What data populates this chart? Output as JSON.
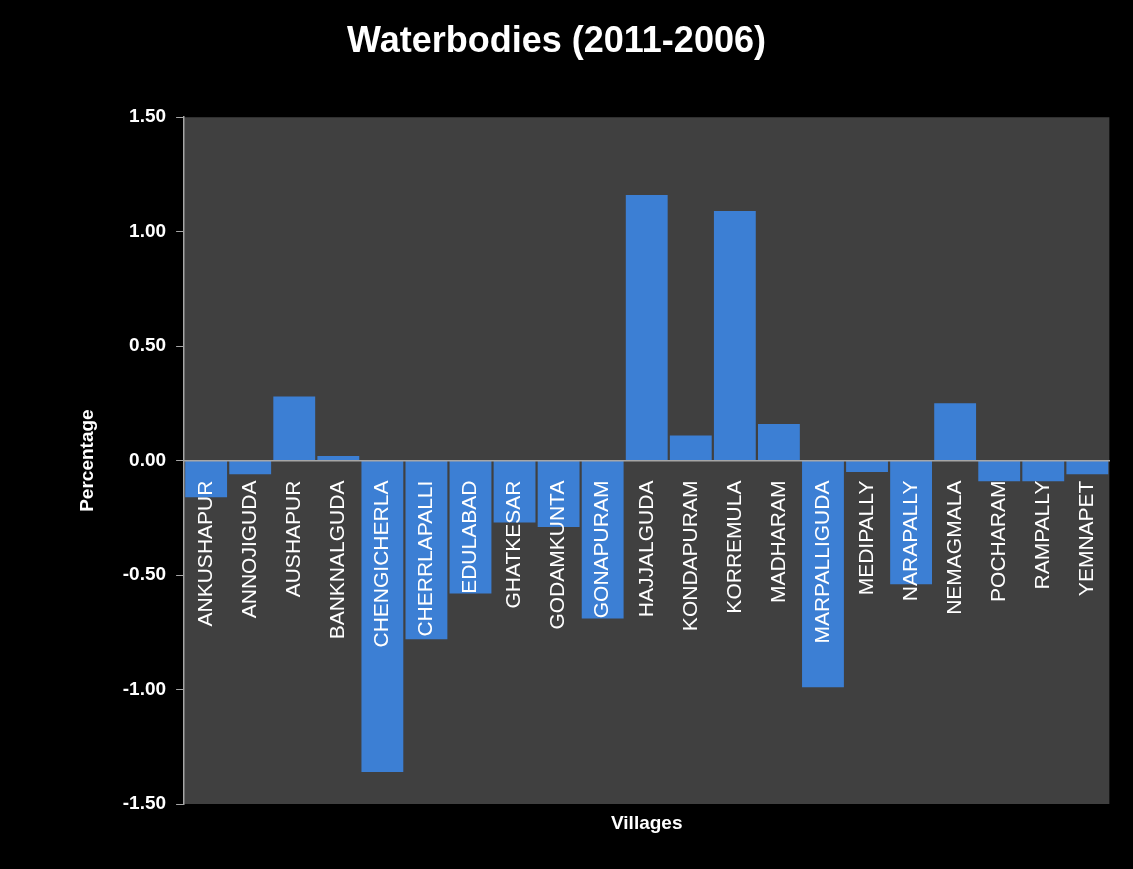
{
  "chart_data": {
    "type": "bar",
    "title": "Waterbodies (2011-2006)",
    "xlabel": "Villages",
    "ylabel": "Percentage",
    "categories": [
      "ANKUSHAPUR",
      "ANNOJIGUDA",
      "AUSHAPUR",
      "BANKNALGUDA",
      "CHENGICHERLA",
      "CHERRLAPALLI",
      "EDULABAD",
      "GHATKESAR",
      "GODAMKUNTA",
      "GONAPURAM",
      "HAJJALGUDA",
      "KONDAPURAM",
      "KORREMULA",
      "MADHARAM",
      "MARPALLIGUDA",
      "MEDIPALLY",
      "NARAPALLY",
      "NEMAGMALA",
      "POCHARAM",
      "RAMPALLY",
      "YEMNAPET"
    ],
    "values": [
      -0.16,
      -0.06,
      0.28,
      0.02,
      -1.36,
      -0.78,
      -0.58,
      -0.27,
      -0.29,
      -0.69,
      1.16,
      0.11,
      1.09,
      0.16,
      -0.99,
      -0.05,
      -0.54,
      0.25,
      -0.09,
      -0.09,
      -0.06
    ],
    "color": "#3c7fd4",
    "ylim": [
      -1.5,
      1.5
    ],
    "yticks": [
      {
        "value": -1.5,
        "label": "-1.50"
      },
      {
        "value": -1,
        "label": "-1.00"
      },
      {
        "value": -0.5,
        "label": "-0.50"
      },
      {
        "value": 0,
        "label": "0.00"
      },
      {
        "value": 0.5,
        "label": "0.50"
      },
      {
        "value": 1,
        "label": "1.00"
      },
      {
        "value": 1.5,
        "label": "1.50"
      }
    ]
  }
}
